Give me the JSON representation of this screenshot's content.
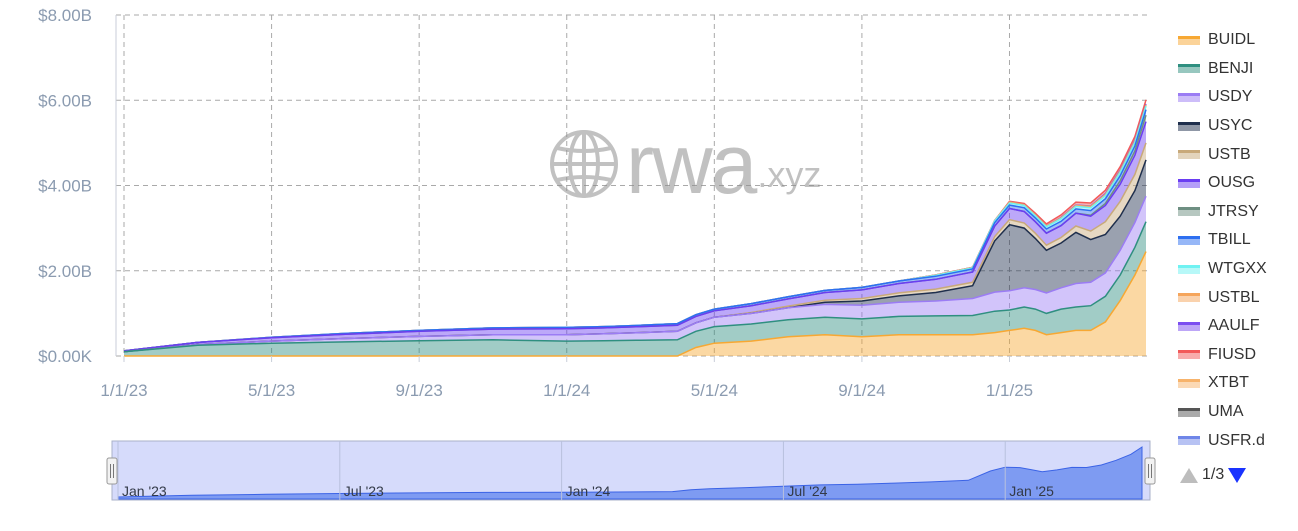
{
  "watermark": {
    "brand": "rwa",
    "suffix": ".xyz",
    "icon": "globe-icon"
  },
  "pager": {
    "text": "1/3",
    "up_icon": "triangle-up-icon",
    "down_icon": "triangle-down-icon"
  },
  "navigator": {
    "labels": [
      "Jan '23",
      "Jul '23",
      "Jan '24",
      "Jul '24",
      "Jan '25"
    ],
    "handle_icon": "grip-handle-icon"
  },
  "chart_data": {
    "type": "area",
    "stacked": true,
    "y_tick_labels": [
      "$0.00K",
      "$2.00B",
      "$4.00B",
      "$6.00B",
      "$8.00B"
    ],
    "y_ticks": [
      0,
      2,
      4,
      6,
      8
    ],
    "ylim": [
      0,
      8
    ],
    "y_unit": "billions USD",
    "x_tick_labels": [
      "1/1/23",
      "5/1/23",
      "9/1/23",
      "1/1/24",
      "5/1/24",
      "9/1/24",
      "1/1/25"
    ],
    "x_ticks": [
      0,
      4,
      8,
      12,
      16,
      20,
      24
    ],
    "x_unit": "months since 1/1/23",
    "xlim": [
      0,
      27.7
    ],
    "grid": true,
    "legend_position": "right",
    "x": [
      0,
      2,
      4,
      6,
      8,
      10,
      12,
      13,
      14,
      15,
      15.5,
      16,
      17,
      18,
      19,
      20,
      21,
      22,
      23,
      23.6,
      24,
      24.4,
      24.7,
      25,
      25.4,
      25.8,
      26.2,
      26.6,
      27,
      27.4,
      27.7
    ],
    "series": [
      {
        "name": "BUIDL",
        "color": "#f7a833",
        "values": [
          0,
          0,
          0,
          0,
          0,
          0,
          0,
          0,
          0,
          0,
          0.2,
          0.3,
          0.35,
          0.45,
          0.5,
          0.45,
          0.5,
          0.5,
          0.5,
          0.55,
          0.6,
          0.65,
          0.6,
          0.5,
          0.55,
          0.6,
          0.6,
          0.8,
          1.3,
          1.9,
          2.45
        ]
      },
      {
        "name": "BENJI",
        "color": "#2f8f80",
        "values": [
          0.1,
          0.25,
          0.3,
          0.33,
          0.36,
          0.38,
          0.35,
          0.36,
          0.37,
          0.38,
          0.38,
          0.39,
          0.4,
          0.4,
          0.41,
          0.42,
          0.43,
          0.44,
          0.45,
          0.5,
          0.48,
          0.5,
          0.5,
          0.5,
          0.55,
          0.55,
          0.58,
          0.6,
          0.6,
          0.65,
          0.7
        ]
      },
      {
        "name": "USDY",
        "color": "#9b7cf4",
        "values": [
          0,
          0.02,
          0.05,
          0.08,
          0.1,
          0.12,
          0.15,
          0.16,
          0.18,
          0.2,
          0.2,
          0.22,
          0.25,
          0.28,
          0.3,
          0.32,
          0.33,
          0.35,
          0.4,
          0.45,
          0.45,
          0.45,
          0.46,
          0.48,
          0.5,
          0.55,
          0.55,
          0.55,
          0.58,
          0.58,
          0.6
        ]
      },
      {
        "name": "USYC",
        "color": "#1f2f4d",
        "values": [
          0,
          0,
          0,
          0,
          0,
          0,
          0,
          0,
          0,
          0,
          0,
          0,
          0,
          0,
          0.05,
          0.1,
          0.15,
          0.2,
          0.3,
          1.2,
          1.55,
          1.4,
          1.2,
          1.0,
          1.05,
          1.2,
          1.0,
          0.9,
          0.8,
          0.75,
          0.85
        ]
      },
      {
        "name": "USTB",
        "color": "#c8a97a",
        "values": [
          0,
          0,
          0,
          0,
          0,
          0,
          0,
          0,
          0,
          0,
          0,
          0,
          0.02,
          0.04,
          0.05,
          0.06,
          0.07,
          0.08,
          0.08,
          0.1,
          0.12,
          0.12,
          0.12,
          0.12,
          0.13,
          0.15,
          0.2,
          0.3,
          0.35,
          0.38,
          0.4
        ]
      },
      {
        "name": "OUSG",
        "color": "#6a3df2",
        "values": [
          0.02,
          0.05,
          0.08,
          0.1,
          0.12,
          0.13,
          0.14,
          0.14,
          0.14,
          0.14,
          0.15,
          0.15,
          0.16,
          0.17,
          0.18,
          0.2,
          0.22,
          0.23,
          0.24,
          0.25,
          0.26,
          0.27,
          0.27,
          0.28,
          0.28,
          0.3,
          0.35,
          0.38,
          0.4,
          0.45,
          0.5
        ]
      },
      {
        "name": "JTRSY",
        "color": "#6e8f82",
        "values": [
          0,
          0,
          0,
          0,
          0,
          0,
          0,
          0,
          0,
          0,
          0,
          0,
          0,
          0,
          0,
          0,
          0,
          0,
          0,
          0,
          0,
          0,
          0,
          0,
          0,
          0,
          0.02,
          0.05,
          0.08,
          0.1,
          0.15
        ]
      },
      {
        "name": "TBILL",
        "color": "#2d6ff0",
        "values": [
          0,
          0,
          0.01,
          0.02,
          0.02,
          0.03,
          0.03,
          0.03,
          0.03,
          0.04,
          0.04,
          0.04,
          0.05,
          0.05,
          0.05,
          0.06,
          0.06,
          0.07,
          0.07,
          0.08,
          0.08,
          0.09,
          0.09,
          0.1,
          0.1,
          0.1,
          0.11,
          0.11,
          0.12,
          0.12,
          0.13
        ]
      },
      {
        "name": "WTGXX",
        "color": "#6ff2f2",
        "values": [
          0,
          0,
          0,
          0,
          0,
          0,
          0,
          0,
          0,
          0,
          0,
          0,
          0,
          0,
          0,
          0,
          0,
          0.02,
          0.03,
          0.04,
          0.05,
          0.05,
          0.05,
          0.05,
          0.06,
          0.06,
          0.07,
          0.07,
          0.08,
          0.08,
          0.08
        ]
      },
      {
        "name": "USTBL",
        "color": "#f5a55c",
        "values": [
          0,
          0,
          0,
          0,
          0,
          0,
          0,
          0,
          0,
          0,
          0,
          0,
          0,
          0,
          0,
          0,
          0,
          0.01,
          0.01,
          0.01,
          0.02,
          0.02,
          0.02,
          0.02,
          0.02,
          0.02,
          0.03,
          0.03,
          0.03,
          0.03,
          0.03
        ]
      },
      {
        "name": "AAULF",
        "color": "#7b4ef0",
        "values": [
          0,
          0,
          0,
          0,
          0,
          0,
          0,
          0,
          0,
          0,
          0,
          0,
          0,
          0,
          0,
          0,
          0,
          0,
          0,
          0,
          0,
          0,
          0,
          0,
          0.01,
          0.01,
          0.01,
          0.02,
          0.02,
          0.02,
          0.02
        ]
      },
      {
        "name": "FIUSD",
        "color": "#f25a5a",
        "values": [
          0,
          0,
          0,
          0,
          0,
          0,
          0,
          0,
          0,
          0,
          0,
          0,
          0,
          0,
          0,
          0,
          0,
          0,
          0,
          0,
          0.02,
          0.03,
          0.04,
          0.05,
          0.06,
          0.07,
          0.07,
          0.08,
          0.08,
          0.09,
          0.1
        ]
      },
      {
        "name": "XTBT",
        "color": "#f7b36b",
        "values": [
          0,
          0,
          0,
          0,
          0,
          0,
          0,
          0,
          0,
          0,
          0,
          0,
          0,
          0,
          0,
          0,
          0,
          0,
          0,
          0,
          0,
          0,
          0,
          0,
          0,
          0,
          0,
          0,
          0,
          0,
          0
        ]
      },
      {
        "name": "UMA",
        "color": "#555555",
        "values": [
          0,
          0,
          0,
          0,
          0,
          0,
          0,
          0,
          0,
          0,
          0,
          0,
          0,
          0,
          0,
          0,
          0,
          0,
          0,
          0,
          0,
          0,
          0,
          0,
          0,
          0,
          0,
          0,
          0,
          0,
          0
        ]
      },
      {
        "name": "USFR.d",
        "color": "#6f86e8",
        "values": [
          0,
          0,
          0,
          0,
          0,
          0,
          0,
          0,
          0,
          0,
          0,
          0,
          0,
          0,
          0,
          0,
          0,
          0,
          0,
          0,
          0,
          0,
          0,
          0,
          0,
          0,
          0,
          0,
          0,
          0,
          0
        ]
      }
    ]
  }
}
